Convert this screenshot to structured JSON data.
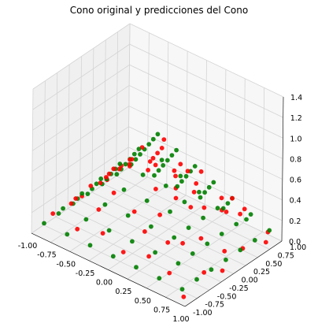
{
  "chart_data": {
    "type": "scatter3d",
    "title": "Cono original y predicciones del Cono",
    "xlim": [
      -1.0,
      1.0
    ],
    "ylim": [
      -1.0,
      1.0
    ],
    "zlim": [
      0.0,
      1.4
    ],
    "x_ticks": [
      "-1.00",
      "-0.75",
      "-0.50",
      "-0.25",
      "0.00",
      "0.25",
      "0.50",
      "0.75",
      "1.00"
    ],
    "y_ticks": [
      "-1.00",
      "-0.75",
      "-0.50",
      "-0.25",
      "0.00",
      "0.25",
      "0.50",
      "0.75",
      "1.00"
    ],
    "z_ticks": [
      "0.0",
      "0.2",
      "0.4",
      "0.6",
      "0.8",
      "1.0",
      "1.2",
      "1.4"
    ],
    "grid": true,
    "surface": "z = 1 - max(|x|, |y|)",
    "series": [
      {
        "color": "#008000",
        "points": [
          [
            -0.9,
            -0.9,
            0.1
          ],
          [
            -0.6,
            -0.9,
            0.1
          ],
          [
            -0.3,
            -0.9,
            0.1
          ],
          [
            0.0,
            -0.9,
            0.1
          ],
          [
            0.3,
            -0.9,
            0.1
          ],
          [
            0.6,
            -0.9,
            0.1
          ],
          [
            0.9,
            -0.9,
            0.1
          ],
          [
            -0.9,
            -0.6,
            0.1
          ],
          [
            -0.6,
            -0.6,
            0.4
          ],
          [
            -0.3,
            -0.6,
            0.4
          ],
          [
            0.0,
            -0.6,
            0.4
          ],
          [
            0.3,
            -0.6,
            0.4
          ],
          [
            0.6,
            -0.6,
            0.4
          ],
          [
            0.9,
            -0.6,
            0.1
          ],
          [
            -0.9,
            -0.3,
            0.1
          ],
          [
            -0.6,
            -0.3,
            0.4
          ],
          [
            -0.3,
            -0.3,
            0.7
          ],
          [
            0.0,
            -0.3,
            0.7
          ],
          [
            0.3,
            -0.3,
            0.7
          ],
          [
            0.6,
            -0.3,
            0.4
          ],
          [
            0.9,
            -0.3,
            0.1
          ],
          [
            -0.9,
            0.0,
            0.1
          ],
          [
            -0.6,
            0.0,
            0.4
          ],
          [
            -0.3,
            0.0,
            0.7
          ],
          [
            0.0,
            0.0,
            1.0
          ],
          [
            0.3,
            0.0,
            0.7
          ],
          [
            0.6,
            0.0,
            0.4
          ],
          [
            0.9,
            0.0,
            0.1
          ],
          [
            -0.9,
            0.3,
            0.1
          ],
          [
            -0.6,
            0.3,
            0.4
          ],
          [
            -0.3,
            0.3,
            0.7
          ],
          [
            0.0,
            0.3,
            0.7
          ],
          [
            0.3,
            0.3,
            0.7
          ],
          [
            0.6,
            0.3,
            0.4
          ],
          [
            0.9,
            0.3,
            0.1
          ],
          [
            -0.9,
            0.6,
            0.1
          ],
          [
            -0.6,
            0.6,
            0.4
          ],
          [
            -0.3,
            0.6,
            0.4
          ],
          [
            0.0,
            0.6,
            0.4
          ],
          [
            0.3,
            0.6,
            0.4
          ],
          [
            0.6,
            0.6,
            0.4
          ],
          [
            0.9,
            0.6,
            0.1
          ],
          [
            -0.9,
            0.9,
            0.1
          ],
          [
            -0.6,
            0.9,
            0.1
          ],
          [
            -0.3,
            0.9,
            0.1
          ],
          [
            0.0,
            0.9,
            0.1
          ],
          [
            0.3,
            0.9,
            0.1
          ],
          [
            0.6,
            0.9,
            0.1
          ],
          [
            0.9,
            0.9,
            0.1
          ],
          [
            -0.75,
            -0.75,
            0.25
          ],
          [
            -0.45,
            -0.75,
            0.25
          ],
          [
            -0.15,
            -0.75,
            0.25
          ],
          [
            0.15,
            -0.75,
            0.25
          ],
          [
            0.45,
            -0.75,
            0.25
          ],
          [
            0.75,
            -0.75,
            0.25
          ],
          [
            -0.75,
            -0.45,
            0.25
          ],
          [
            -0.45,
            -0.45,
            0.55
          ],
          [
            -0.15,
            -0.45,
            0.55
          ],
          [
            0.15,
            -0.45,
            0.55
          ],
          [
            0.45,
            -0.45,
            0.55
          ],
          [
            0.75,
            -0.45,
            0.25
          ],
          [
            -0.75,
            -0.15,
            0.25
          ],
          [
            -0.45,
            -0.15,
            0.55
          ],
          [
            -0.15,
            -0.15,
            0.85
          ],
          [
            0.15,
            -0.15,
            0.85
          ],
          [
            0.45,
            -0.15,
            0.55
          ],
          [
            0.75,
            -0.15,
            0.25
          ],
          [
            -0.75,
            0.15,
            0.25
          ],
          [
            -0.45,
            0.15,
            0.55
          ],
          [
            -0.15,
            0.15,
            0.85
          ],
          [
            0.15,
            0.15,
            0.85
          ],
          [
            0.45,
            0.15,
            0.55
          ],
          [
            0.75,
            0.15,
            0.25
          ],
          [
            -0.75,
            0.45,
            0.25
          ],
          [
            -0.45,
            0.45,
            0.55
          ],
          [
            -0.15,
            0.45,
            0.55
          ],
          [
            0.15,
            0.45,
            0.55
          ],
          [
            0.45,
            0.45,
            0.55
          ],
          [
            0.75,
            0.45,
            0.25
          ],
          [
            -0.75,
            0.75,
            0.25
          ],
          [
            -0.45,
            0.75,
            0.25
          ],
          [
            -0.15,
            0.75,
            0.25
          ],
          [
            0.15,
            0.75,
            0.25
          ],
          [
            0.45,
            0.75,
            0.25
          ],
          [
            0.75,
            0.75,
            0.25
          ]
        ]
      },
      {
        "color": "#ff0000",
        "points": [
          [
            -0.85,
            -0.8,
            0.18
          ],
          [
            -0.5,
            -0.85,
            0.17
          ],
          [
            -0.2,
            -0.8,
            0.22
          ],
          [
            0.1,
            -0.85,
            0.16
          ],
          [
            0.4,
            -0.8,
            0.21
          ],
          [
            0.7,
            -0.85,
            0.17
          ],
          [
            0.95,
            -0.95,
            0.06
          ],
          [
            -0.8,
            -0.5,
            0.2
          ],
          [
            -0.55,
            -0.5,
            0.46
          ],
          [
            -0.25,
            -0.5,
            0.5
          ],
          [
            0.05,
            -0.55,
            0.44
          ],
          [
            0.35,
            -0.5,
            0.5
          ],
          [
            0.65,
            -0.5,
            0.33
          ],
          [
            0.9,
            -0.45,
            0.12
          ],
          [
            -0.85,
            -0.2,
            0.16
          ],
          [
            -0.5,
            -0.2,
            0.5
          ],
          [
            -0.2,
            -0.25,
            0.76
          ],
          [
            0.1,
            -0.2,
            0.8
          ],
          [
            0.4,
            -0.25,
            0.6
          ],
          [
            0.7,
            -0.2,
            0.3
          ],
          [
            0.95,
            -0.15,
            0.06
          ],
          [
            -0.8,
            0.1,
            0.21
          ],
          [
            -0.5,
            0.05,
            0.5
          ],
          [
            -0.2,
            0.0,
            0.8
          ],
          [
            0.05,
            0.05,
            0.95
          ],
          [
            0.25,
            -0.05,
            0.75
          ],
          [
            0.55,
            0.1,
            0.45
          ],
          [
            0.85,
            0.05,
            0.15
          ],
          [
            -0.9,
            0.4,
            0.11
          ],
          [
            -0.55,
            0.35,
            0.45
          ],
          [
            -0.25,
            0.4,
            0.6
          ],
          [
            0.05,
            0.4,
            0.6
          ],
          [
            0.35,
            0.35,
            0.65
          ],
          [
            0.65,
            0.4,
            0.35
          ],
          [
            0.9,
            0.35,
            0.1
          ],
          [
            -0.8,
            0.7,
            0.2
          ],
          [
            -0.5,
            0.65,
            0.35
          ],
          [
            -0.2,
            0.7,
            0.3
          ],
          [
            0.1,
            0.65,
            0.35
          ],
          [
            0.4,
            0.7,
            0.3
          ],
          [
            0.7,
            0.7,
            0.3
          ],
          [
            0.95,
            0.75,
            0.05
          ],
          [
            -0.95,
            0.95,
            0.05
          ],
          [
            -0.65,
            0.85,
            0.15
          ],
          [
            -0.35,
            0.95,
            0.05
          ],
          [
            -0.05,
            0.85,
            0.15
          ],
          [
            0.25,
            0.95,
            0.05
          ],
          [
            0.55,
            0.85,
            0.15
          ],
          [
            0.85,
            0.95,
            0.05
          ],
          [
            -0.65,
            -0.65,
            0.35
          ],
          [
            -0.35,
            -0.65,
            0.35
          ],
          [
            0.25,
            -0.65,
            0.35
          ],
          [
            0.55,
            -0.65,
            0.35
          ],
          [
            -0.65,
            0.25,
            0.35
          ],
          [
            -0.35,
            -0.35,
            0.65
          ],
          [
            0.3,
            0.15,
            0.7
          ],
          [
            -0.1,
            0.25,
            0.75
          ],
          [
            0.2,
            -0.35,
            0.65
          ],
          [
            -0.4,
            0.55,
            0.45
          ],
          [
            0.6,
            0.6,
            0.4
          ],
          [
            -0.6,
            -0.1,
            0.4
          ],
          [
            0.5,
            -0.1,
            0.5
          ]
        ]
      }
    ]
  }
}
